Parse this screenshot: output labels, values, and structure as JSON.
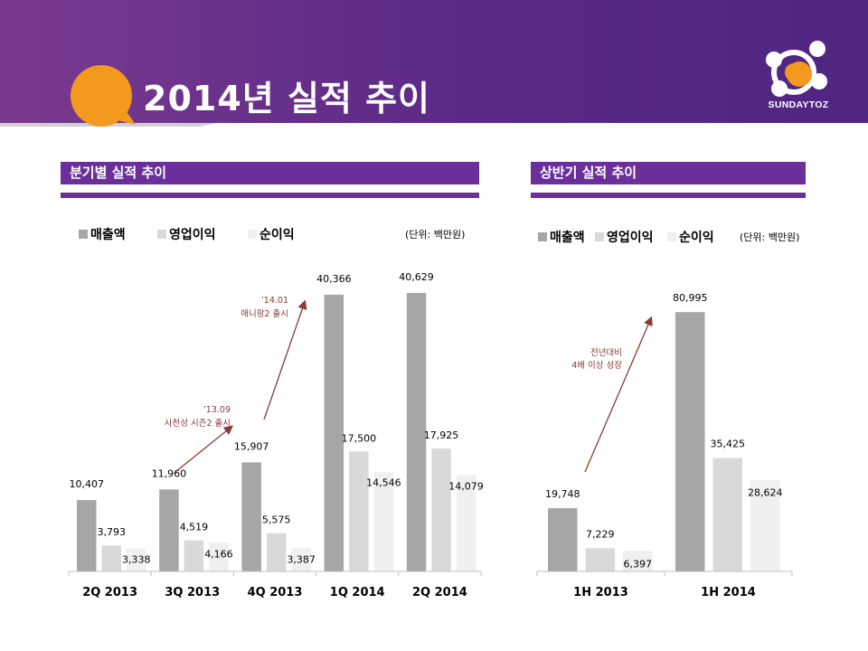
{
  "header": {
    "title": "2014년 실적 추이",
    "logo_text": "SUNDAYTOZ"
  },
  "colors": {
    "header_purple": "#5a2a86",
    "accent_orange": "#f39a1e",
    "sales": "#a6a6a6",
    "op_income": "#d9d9d9",
    "net_income": "#f0f0f0",
    "annotation": "#8b3a3a"
  },
  "chart_data": [
    {
      "type": "bar",
      "section_title": "분기별 실적 추이",
      "unit_label": "(단위: 백만원)",
      "categories": [
        "2Q 2013",
        "3Q 2013",
        "4Q 2013",
        "1Q 2014",
        "2Q 2014"
      ],
      "series": [
        {
          "name": "매출액",
          "values": [
            10407,
            11960,
            15907,
            40366,
            40629
          ]
        },
        {
          "name": "영업이익",
          "values": [
            3793,
            4519,
            5575,
            17500,
            17925
          ]
        },
        {
          "name": "순이익",
          "values": [
            3338,
            4166,
            3387,
            14546,
            14079
          ]
        }
      ],
      "value_labels": [
        [
          "10,407",
          "11,960",
          "15,907",
          "40,366",
          "40,629"
        ],
        [
          "3,793",
          "4,519",
          "5,575",
          "17,500",
          "17,925"
        ],
        [
          "3,338",
          "4,166",
          "3,387",
          "14,546",
          "14,079"
        ]
      ],
      "ylim": [
        0,
        43000
      ],
      "legend_position": "top-left",
      "annotations": [
        {
          "line1": "’13.09",
          "line2": "사천성 시즌2 출시"
        },
        {
          "line1": "’14.01",
          "line2": "애니팡2 출시"
        }
      ]
    },
    {
      "type": "bar",
      "section_title": "상반기 실적 추이",
      "unit_label": "(단위: 백만원)",
      "categories": [
        "1H 2013",
        "1H 2014"
      ],
      "series": [
        {
          "name": "매출액",
          "values": [
            19748,
            80995
          ]
        },
        {
          "name": "영업이익",
          "values": [
            7229,
            35425
          ]
        },
        {
          "name": "순이익",
          "values": [
            6397,
            28624
          ]
        }
      ],
      "value_labels": [
        [
          "19,748",
          "80,995"
        ],
        [
          "7,229",
          "35,425"
        ],
        [
          "6,397",
          "28,624"
        ]
      ],
      "ylim": [
        0,
        85000
      ],
      "legend_position": "top-left",
      "annotations": [
        {
          "line1": "전년대비",
          "line2": "4배 이상 성장"
        }
      ]
    }
  ]
}
